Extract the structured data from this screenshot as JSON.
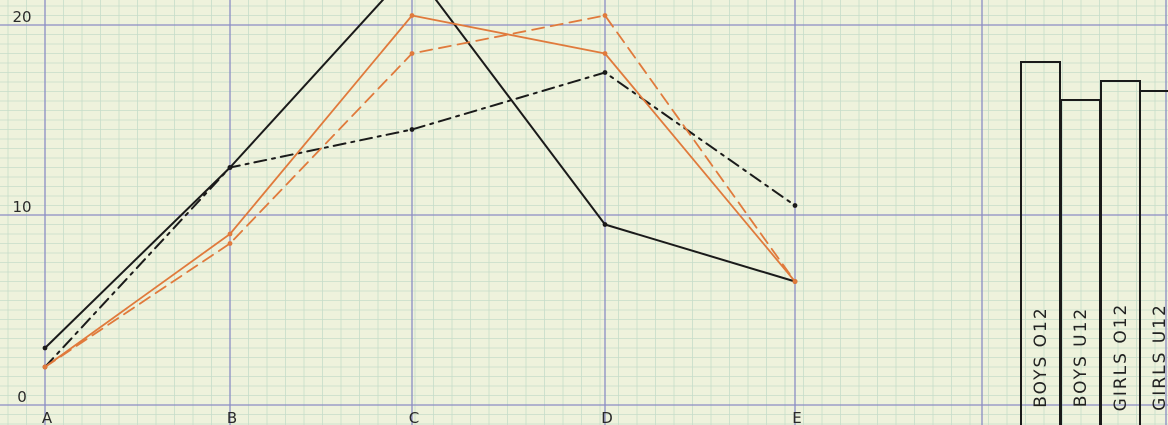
{
  "chart_data": {
    "type": "line",
    "categories": [
      "A",
      "B",
      "C",
      "D",
      "E"
    ],
    "y_ticks": [
      "0",
      "10",
      "20"
    ],
    "ylim": [
      0,
      22
    ],
    "grid": true,
    "legend_placement": "right",
    "series": [
      {
        "name": "BOYS O12",
        "values": [
          3,
          12.5,
          23,
          9.5,
          6.5
        ],
        "color": "#1a1a1a",
        "dash": "solid"
      },
      {
        "name": "BOYS U12",
        "values": [
          2,
          12.5,
          14.5,
          17.5,
          10.5
        ],
        "color": "#1a1a1a",
        "dash": "dashdot"
      },
      {
        "name": "GIRLS O12",
        "values": [
          2,
          9,
          20.5,
          18.5,
          6.5
        ],
        "color": "#e07a3c",
        "dash": "solid"
      },
      {
        "name": "GIRLS U12",
        "values": [
          2,
          8.5,
          18.5,
          20.5,
          6.5
        ],
        "color": "#e07a3c",
        "dash": "dashed"
      }
    ]
  },
  "colors": {
    "paper": "#eef2dc",
    "grid_minor": "#c6dcca",
    "grid_major": "#8a8cc4"
  }
}
